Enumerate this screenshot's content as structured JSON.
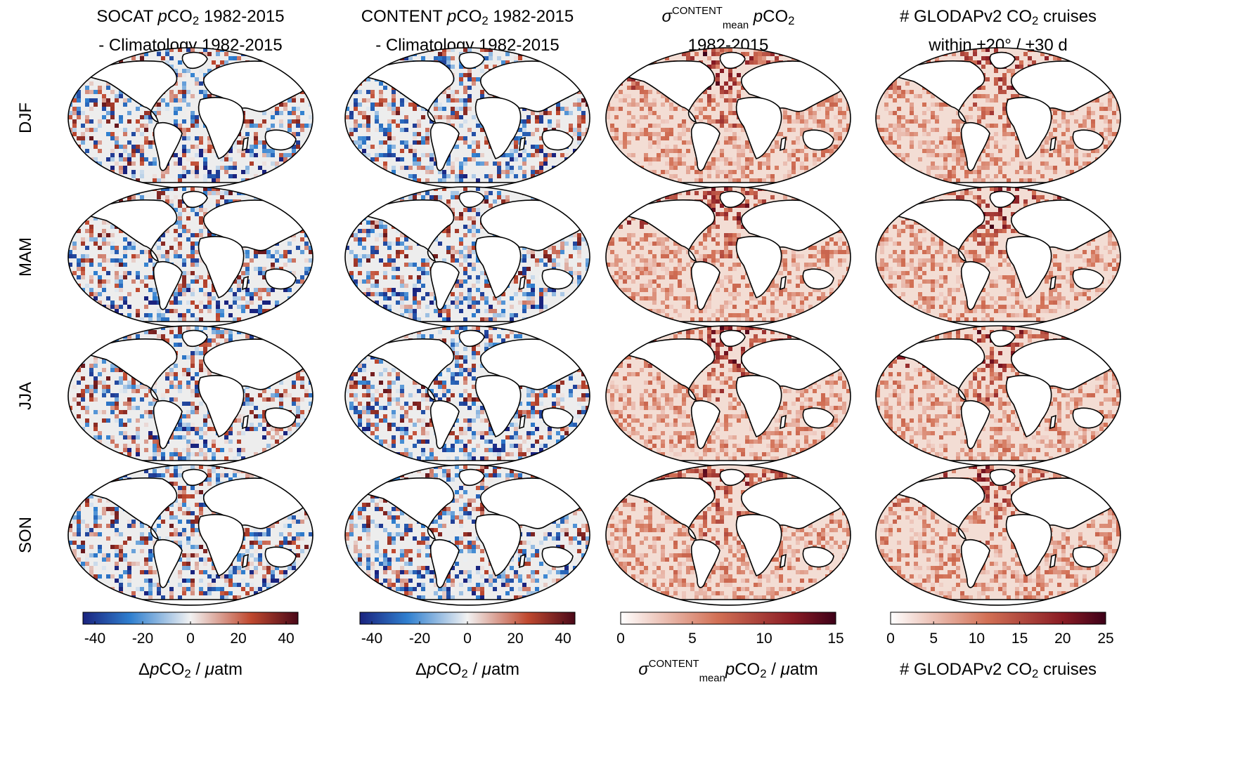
{
  "chart_data": [
    {
      "type": "heatmap",
      "panel": "col1",
      "title_lines": [
        [
          {
            "t": "SOCAT "
          },
          {
            "t": "p",
            "i": true
          },
          {
            "t": "CO"
          },
          {
            "t": "2",
            "sub": true
          },
          {
            "t": " 1982-2015"
          }
        ],
        [
          {
            "t": "- Climatology 1982-2015"
          }
        ]
      ],
      "rows": [
        "DJF",
        "MAM",
        "JJA",
        "SON"
      ],
      "colormap": "diverging",
      "clim": [
        -45,
        45
      ],
      "ticks": [
        -40,
        -20,
        0,
        20,
        40
      ],
      "tick_labels": [
        "-40",
        "-20",
        "0",
        "20",
        "40"
      ],
      "label": [
        {
          "t": "Δ"
        },
        {
          "t": "p",
          "i": true
        },
        {
          "t": "CO"
        },
        {
          "t": "2",
          "sub": true
        },
        {
          "t": " / "
        },
        {
          "t": "μ",
          "i": true
        },
        {
          "t": "atm"
        }
      ]
    },
    {
      "type": "heatmap",
      "panel": "col2",
      "title_lines": [
        [
          {
            "t": "CONTENT "
          },
          {
            "t": "p",
            "i": true
          },
          {
            "t": "CO"
          },
          {
            "t": "2",
            "sub": true
          },
          {
            "t": " 1982-2015"
          }
        ],
        [
          {
            "t": "- Climatology 1982-2015"
          }
        ]
      ],
      "rows": [
        "DJF",
        "MAM",
        "JJA",
        "SON"
      ],
      "colormap": "diverging",
      "clim": [
        -45,
        45
      ],
      "ticks": [
        -40,
        -20,
        0,
        20,
        40
      ],
      "tick_labels": [
        "-40",
        "-20",
        "0",
        "20",
        "40"
      ],
      "label": [
        {
          "t": "Δ"
        },
        {
          "t": "p",
          "i": true
        },
        {
          "t": "CO"
        },
        {
          "t": "2",
          "sub": true
        },
        {
          "t": " / "
        },
        {
          "t": "μ",
          "i": true
        },
        {
          "t": "atm"
        }
      ]
    },
    {
      "type": "heatmap",
      "panel": "col3",
      "title_lines": [
        [
          {
            "t": "σ",
            "i": true
          },
          {
            "t": "CONTENT",
            "sup": true
          },
          {
            "t": "mean",
            "subsup": true
          },
          {
            "t": " p",
            "i": true
          },
          {
            "t": "CO"
          },
          {
            "t": "2",
            "sub": true
          }
        ],
        [
          {
            "t": "1982-2015"
          }
        ]
      ],
      "rows": [
        "DJF",
        "MAM",
        "JJA",
        "SON"
      ],
      "colormap": "sequential",
      "clim": [
        0,
        15
      ],
      "ticks": [
        0,
        5,
        10,
        15
      ],
      "tick_labels": [
        "0",
        "5",
        "10",
        "15"
      ],
      "label": [
        {
          "t": "σ",
          "i": true
        },
        {
          "t": "CONTENT",
          "sup": true
        },
        {
          "t": "mean",
          "subsup": true
        },
        {
          "t": "p",
          "i": true
        },
        {
          "t": "CO"
        },
        {
          "t": "2",
          "sub": true
        },
        {
          "t": " / "
        },
        {
          "t": "μ",
          "i": true
        },
        {
          "t": "atm"
        }
      ]
    },
    {
      "type": "heatmap",
      "panel": "col4",
      "title_lines": [
        [
          {
            "t": "# GLODAPv2 CO"
          },
          {
            "t": "2",
            "sub": true
          },
          {
            "t": " cruises"
          }
        ],
        [
          {
            "t": "within ±20° / ±30 d"
          }
        ]
      ],
      "rows": [
        "DJF",
        "MAM",
        "JJA",
        "SON"
      ],
      "colormap": "sequential",
      "clim": [
        0,
        25
      ],
      "ticks": [
        0,
        5,
        10,
        15,
        20,
        25
      ],
      "tick_labels": [
        "0",
        "5",
        "10",
        "15",
        "20",
        "25"
      ],
      "label": [
        {
          "t": "# GLODAPv2 CO"
        },
        {
          "t": "2",
          "sub": true
        },
        {
          "t": " cruises"
        }
      ]
    }
  ],
  "row_labels": [
    "DJF",
    "MAM",
    "JJA",
    "SON"
  ],
  "colors": {
    "div_low": "#1a237e",
    "div_mid_low": "#2f7fcf",
    "div_zero": "#f2f2f2",
    "div_mid_high": "#c0492f",
    "div_high": "#4a0818",
    "seq_zero": "#ffffff",
    "seq_mid": "#d27055",
    "seq_high": "#3d0018",
    "land": "#ffffff",
    "coast": "#000000"
  }
}
